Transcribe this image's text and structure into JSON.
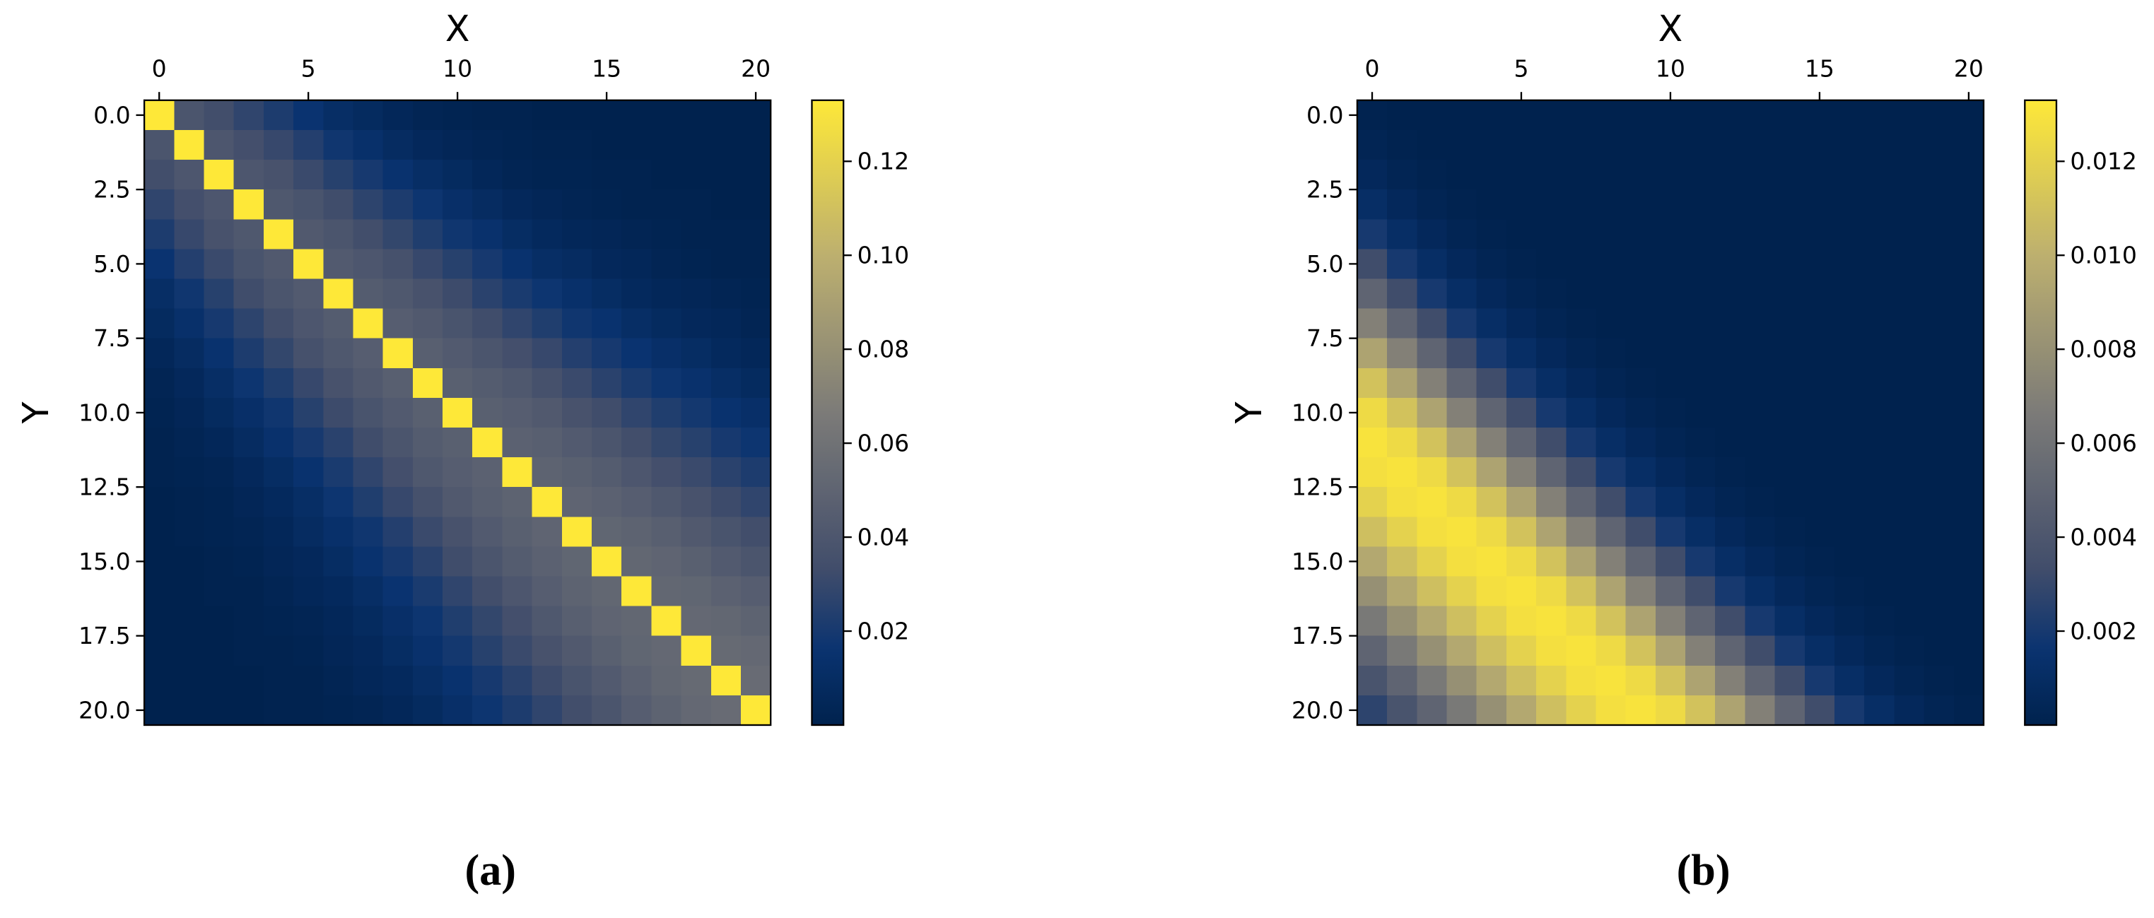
{
  "chart_data": [
    {
      "type": "heatmap",
      "x_label": "X",
      "y_label": "Y",
      "caption": "(a)",
      "colormap": "cividis",
      "xlim": [
        -0.5,
        20.5
      ],
      "xticks": [
        0,
        5,
        10,
        15,
        20
      ],
      "ylim": [
        20.5,
        -0.5
      ],
      "yticks": [
        {
          "value": 0,
          "label": "0.0"
        },
        2.5,
        {
          "value": 5,
          "label": "5.0"
        },
        7.5,
        {
          "value": 10,
          "label": "10.0"
        },
        12.5,
        {
          "value": 15,
          "label": "15.0"
        },
        17.5,
        {
          "value": 20,
          "label": "20.0"
        }
      ],
      "clim": [
        0,
        0.133
      ],
      "cbar_ticks": [
        0.02,
        0.04,
        0.06,
        0.08,
        {
          "value": 0.1,
          "label": "0.10"
        },
        0.12
      ],
      "z": [
        [
          0.133,
          0.039,
          0.034,
          0.028,
          0.022,
          0.016,
          0.011,
          0.008,
          0.005,
          0.003,
          0.002,
          0.001,
          0.001,
          0,
          0,
          0,
          0,
          0,
          0,
          0,
          0
        ],
        [
          0.039,
          0.133,
          0.04,
          0.035,
          0.03,
          0.024,
          0.018,
          0.013,
          0.009,
          0.006,
          0.004,
          0.003,
          0.002,
          0.001,
          0.001,
          0,
          0,
          0,
          0,
          0,
          0
        ],
        [
          0.034,
          0.04,
          0.133,
          0.04,
          0.037,
          0.031,
          0.025,
          0.02,
          0.015,
          0.011,
          0.008,
          0.005,
          0.003,
          0.002,
          0.002,
          0.001,
          0.001,
          0,
          0,
          0,
          0
        ],
        [
          0.028,
          0.035,
          0.04,
          0.133,
          0.041,
          0.038,
          0.033,
          0.027,
          0.022,
          0.017,
          0.012,
          0.009,
          0.006,
          0.004,
          0.003,
          0.002,
          0.001,
          0.001,
          0.001,
          0,
          0
        ],
        [
          0.022,
          0.03,
          0.037,
          0.041,
          0.133,
          0.042,
          0.039,
          0.034,
          0.029,
          0.023,
          0.018,
          0.014,
          0.01,
          0.007,
          0.005,
          0.004,
          0.003,
          0.002,
          0.001,
          0.001,
          0.001
        ],
        [
          0.016,
          0.024,
          0.031,
          0.038,
          0.042,
          0.133,
          0.043,
          0.04,
          0.036,
          0.03,
          0.025,
          0.02,
          0.015,
          0.011,
          0.009,
          0.006,
          0.005,
          0.003,
          0.002,
          0.001,
          0.001
        ],
        [
          0.011,
          0.018,
          0.025,
          0.033,
          0.039,
          0.043,
          0.133,
          0.044,
          0.041,
          0.037,
          0.032,
          0.026,
          0.021,
          0.017,
          0.013,
          0.01,
          0.007,
          0.005,
          0.004,
          0.003,
          0.002
        ],
        [
          0.008,
          0.013,
          0.02,
          0.027,
          0.034,
          0.04,
          0.044,
          0.133,
          0.045,
          0.042,
          0.038,
          0.033,
          0.028,
          0.023,
          0.018,
          0.015,
          0.011,
          0.008,
          0.006,
          0.005,
          0.003
        ],
        [
          0.005,
          0.009,
          0.015,
          0.022,
          0.029,
          0.036,
          0.041,
          0.045,
          0.133,
          0.046,
          0.043,
          0.039,
          0.035,
          0.03,
          0.024,
          0.02,
          0.016,
          0.012,
          0.01,
          0.007,
          0.005
        ],
        [
          0.003,
          0.006,
          0.011,
          0.017,
          0.023,
          0.03,
          0.037,
          0.042,
          0.046,
          0.133,
          0.047,
          0.044,
          0.041,
          0.036,
          0.031,
          0.026,
          0.021,
          0.017,
          0.014,
          0.011,
          0.008
        ],
        [
          0.002,
          0.004,
          0.008,
          0.012,
          0.018,
          0.025,
          0.032,
          0.038,
          0.043,
          0.047,
          0.133,
          0.047,
          0.045,
          0.042,
          0.037,
          0.033,
          0.028,
          0.023,
          0.019,
          0.015,
          0.012
        ],
        [
          0.001,
          0.003,
          0.005,
          0.009,
          0.014,
          0.02,
          0.026,
          0.033,
          0.039,
          0.044,
          0.047,
          0.133,
          0.048,
          0.046,
          0.043,
          0.039,
          0.034,
          0.029,
          0.025,
          0.02,
          0.017
        ],
        [
          0.001,
          0.002,
          0.003,
          0.006,
          0.01,
          0.015,
          0.021,
          0.028,
          0.035,
          0.041,
          0.045,
          0.048,
          0.133,
          0.049,
          0.047,
          0.044,
          0.04,
          0.035,
          0.031,
          0.026,
          0.022
        ],
        [
          0,
          0.001,
          0.002,
          0.004,
          0.007,
          0.011,
          0.017,
          0.023,
          0.03,
          0.036,
          0.042,
          0.046,
          0.049,
          0.133,
          0.05,
          0.048,
          0.045,
          0.041,
          0.037,
          0.032,
          0.028
        ],
        [
          0,
          0.001,
          0.002,
          0.003,
          0.005,
          0.009,
          0.013,
          0.018,
          0.024,
          0.031,
          0.037,
          0.043,
          0.047,
          0.05,
          0.133,
          0.051,
          0.049,
          0.046,
          0.042,
          0.038,
          0.034
        ],
        [
          0,
          0,
          0.001,
          0.002,
          0.004,
          0.006,
          0.01,
          0.015,
          0.02,
          0.026,
          0.033,
          0.039,
          0.044,
          0.048,
          0.051,
          0.133,
          0.052,
          0.05,
          0.047,
          0.043,
          0.039
        ],
        [
          0,
          0,
          0.001,
          0.001,
          0.003,
          0.005,
          0.007,
          0.011,
          0.016,
          0.021,
          0.028,
          0.034,
          0.04,
          0.045,
          0.049,
          0.052,
          0.133,
          0.052,
          0.051,
          0.048,
          0.045
        ],
        [
          0,
          0,
          0,
          0.001,
          0.002,
          0.003,
          0.005,
          0.008,
          0.012,
          0.017,
          0.023,
          0.029,
          0.035,
          0.041,
          0.046,
          0.05,
          0.052,
          0.133,
          0.053,
          0.052,
          0.049
        ],
        [
          0,
          0,
          0,
          0.001,
          0.001,
          0.002,
          0.004,
          0.006,
          0.01,
          0.014,
          0.019,
          0.025,
          0.031,
          0.037,
          0.042,
          0.047,
          0.051,
          0.053,
          0.133,
          0.054,
          0.053
        ],
        [
          0,
          0,
          0,
          0,
          0.001,
          0.001,
          0.003,
          0.005,
          0.007,
          0.011,
          0.015,
          0.02,
          0.026,
          0.032,
          0.038,
          0.043,
          0.048,
          0.052,
          0.054,
          0.133,
          0.055
        ],
        [
          0,
          0,
          0,
          0,
          0.001,
          0.001,
          0.002,
          0.003,
          0.005,
          0.008,
          0.012,
          0.017,
          0.022,
          0.028,
          0.034,
          0.039,
          0.045,
          0.049,
          0.053,
          0.055,
          0.133
        ]
      ]
    },
    {
      "type": "heatmap",
      "x_label": "X",
      "y_label": "Y",
      "caption": "(b)",
      "colormap": "cividis",
      "xlim": [
        -0.5,
        20.5
      ],
      "xticks": [
        0,
        5,
        10,
        15,
        20
      ],
      "ylim": [
        20.5,
        -0.5
      ],
      "yticks": [
        {
          "value": 0,
          "label": "0.0"
        },
        2.5,
        {
          "value": 5,
          "label": "5.0"
        },
        7.5,
        {
          "value": 10,
          "label": "10.0"
        },
        12.5,
        {
          "value": 15,
          "label": "15.0"
        },
        17.5,
        {
          "value": 20,
          "label": "20.0"
        }
      ],
      "clim": [
        0,
        0.0133
      ],
      "cbar_ticks": [
        0.002,
        0.004,
        0.006,
        0.008,
        {
          "value": 0.01,
          "label": "0.010"
        },
        0.012
      ],
      "z": [
        [
          0.0001,
          0,
          0,
          0,
          0,
          0,
          0,
          0,
          0,
          0,
          0,
          0,
          0,
          0,
          0,
          0,
          0,
          0,
          0,
          0,
          0
        ],
        [
          0.0003,
          0.0001,
          0,
          0,
          0,
          0,
          0,
          0,
          0,
          0,
          0,
          0,
          0,
          0,
          0,
          0,
          0,
          0,
          0,
          0,
          0
        ],
        [
          0.0006,
          0.0003,
          0.0001,
          0,
          0,
          0,
          0,
          0,
          0,
          0,
          0,
          0,
          0,
          0,
          0,
          0,
          0,
          0,
          0,
          0,
          0
        ],
        [
          0.0011,
          0.0006,
          0.0003,
          0.0001,
          0,
          0,
          0,
          0,
          0,
          0,
          0,
          0,
          0,
          0,
          0,
          0,
          0,
          0,
          0,
          0,
          0
        ],
        [
          0.002,
          0.0011,
          0.0006,
          0.0003,
          0.0001,
          0,
          0,
          0,
          0,
          0,
          0,
          0,
          0,
          0,
          0,
          0,
          0,
          0,
          0,
          0,
          0
        ],
        [
          0.0033,
          0.002,
          0.0011,
          0.0006,
          0.0003,
          0.0001,
          0,
          0,
          0,
          0,
          0,
          0,
          0,
          0,
          0,
          0,
          0,
          0,
          0,
          0,
          0
        ],
        [
          0.005,
          0.0033,
          0.002,
          0.0011,
          0.0006,
          0.0003,
          0.0001,
          0,
          0,
          0,
          0,
          0,
          0,
          0,
          0,
          0,
          0,
          0,
          0,
          0,
          0
        ],
        [
          0.007,
          0.005,
          0.0033,
          0.002,
          0.0011,
          0.0006,
          0.0003,
          0.0001,
          0,
          0,
          0,
          0,
          0,
          0,
          0,
          0,
          0,
          0,
          0,
          0,
          0
        ],
        [
          0.0092,
          0.007,
          0.005,
          0.0033,
          0.002,
          0.0011,
          0.0006,
          0.0003,
          0.0001,
          0,
          0,
          0,
          0,
          0,
          0,
          0,
          0,
          0,
          0,
          0,
          0
        ],
        [
          0.0111,
          0.0092,
          0.007,
          0.005,
          0.0033,
          0.002,
          0.0011,
          0.0006,
          0.0003,
          0.0001,
          0,
          0,
          0,
          0,
          0,
          0,
          0,
          0,
          0,
          0,
          0
        ],
        [
          0.0125,
          0.0111,
          0.0092,
          0.007,
          0.005,
          0.0033,
          0.002,
          0.0011,
          0.0006,
          0.0003,
          0.0001,
          0,
          0,
          0,
          0,
          0,
          0,
          0,
          0,
          0,
          0
        ],
        [
          0.013,
          0.0125,
          0.0111,
          0.0092,
          0.007,
          0.005,
          0.0033,
          0.002,
          0.0011,
          0.0006,
          0.0003,
          0.0001,
          0,
          0,
          0,
          0,
          0,
          0,
          0,
          0,
          0
        ],
        [
          0.0128,
          0.013,
          0.0125,
          0.0111,
          0.0092,
          0.007,
          0.005,
          0.0033,
          0.002,
          0.0011,
          0.0006,
          0.0003,
          0.0001,
          0,
          0,
          0,
          0,
          0,
          0,
          0,
          0
        ],
        [
          0.012,
          0.0128,
          0.013,
          0.0125,
          0.0111,
          0.0092,
          0.007,
          0.005,
          0.0033,
          0.002,
          0.0011,
          0.0006,
          0.0003,
          0.0001,
          0,
          0,
          0,
          0,
          0,
          0,
          0
        ],
        [
          0.0109,
          0.012,
          0.0128,
          0.013,
          0.0125,
          0.0111,
          0.0092,
          0.007,
          0.005,
          0.0033,
          0.002,
          0.0011,
          0.0006,
          0.0003,
          0.0001,
          0,
          0,
          0,
          0,
          0,
          0
        ],
        [
          0.0095,
          0.0109,
          0.012,
          0.0128,
          0.013,
          0.0125,
          0.0111,
          0.0092,
          0.007,
          0.005,
          0.0033,
          0.002,
          0.0011,
          0.0006,
          0.0003,
          0.0001,
          0,
          0,
          0,
          0,
          0
        ],
        [
          0.008,
          0.0095,
          0.0109,
          0.012,
          0.0128,
          0.013,
          0.0125,
          0.0111,
          0.0092,
          0.007,
          0.005,
          0.0033,
          0.002,
          0.0011,
          0.0006,
          0.0003,
          0.0001,
          0,
          0,
          0,
          0
        ],
        [
          0.0065,
          0.008,
          0.0095,
          0.0109,
          0.012,
          0.0128,
          0.013,
          0.0125,
          0.0111,
          0.0092,
          0.007,
          0.005,
          0.0033,
          0.002,
          0.0011,
          0.0006,
          0.0003,
          0.0001,
          0,
          0,
          0
        ],
        [
          0.005,
          0.0065,
          0.008,
          0.0095,
          0.0109,
          0.012,
          0.0128,
          0.013,
          0.0125,
          0.0111,
          0.0092,
          0.007,
          0.005,
          0.0033,
          0.002,
          0.0011,
          0.0006,
          0.0003,
          0.0001,
          0,
          0
        ],
        [
          0.0038,
          0.005,
          0.0065,
          0.008,
          0.0095,
          0.0109,
          0.012,
          0.0128,
          0.013,
          0.0125,
          0.0111,
          0.0092,
          0.007,
          0.005,
          0.0033,
          0.002,
          0.0011,
          0.0006,
          0.0003,
          0.0001,
          0
        ],
        [
          0.0027,
          0.0038,
          0.005,
          0.0065,
          0.008,
          0.0095,
          0.0109,
          0.012,
          0.0128,
          0.013,
          0.0125,
          0.0111,
          0.0092,
          0.007,
          0.005,
          0.0033,
          0.002,
          0.0011,
          0.0006,
          0.0003,
          0.0001
        ]
      ]
    }
  ]
}
